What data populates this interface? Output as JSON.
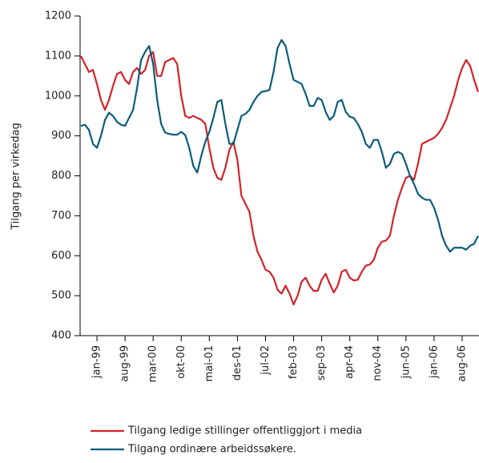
{
  "chart_data": {
    "type": "line",
    "y_label": "Tilgang per virkedag",
    "categories": [
      null,
      null,
      null,
      null,
      "jan-99",
      null,
      null,
      null,
      null,
      null,
      null,
      "aug-99",
      null,
      null,
      null,
      null,
      null,
      null,
      "mar-00",
      null,
      null,
      null,
      null,
      null,
      null,
      "okt-00",
      null,
      null,
      null,
      null,
      null,
      null,
      "mai-01",
      null,
      null,
      null,
      null,
      null,
      null,
      "des-01",
      null,
      null,
      null,
      null,
      null,
      null,
      "jul-02",
      null,
      null,
      null,
      null,
      null,
      null,
      "feb-03",
      null,
      null,
      null,
      null,
      null,
      null,
      "sep-03",
      null,
      null,
      null,
      null,
      null,
      null,
      "apr-04",
      null,
      null,
      null,
      null,
      null,
      null,
      "nov-04",
      null,
      null,
      null,
      null,
      null,
      null,
      "jun-05",
      null,
      null,
      null,
      null,
      null,
      null,
      "jan-06",
      null,
      null,
      null,
      null,
      null,
      null,
      "aug-06",
      null,
      null,
      null,
      null
    ],
    "series": [
      {
        "name": "Tilgang ledige stillinger offentliggjort i media",
        "color": "#d2232a",
        "values": [
          1100,
          1080,
          1060,
          1065,
          1030,
          990,
          965,
          990,
          1025,
          1055,
          1060,
          1040,
          1030,
          1060,
          1070,
          1055,
          1065,
          1100,
          1110,
          1050,
          1050,
          1085,
          1090,
          1095,
          1080,
          1000,
          950,
          945,
          950,
          945,
          940,
          930,
          870,
          820,
          795,
          790,
          820,
          865,
          885,
          840,
          750,
          730,
          710,
          650,
          610,
          590,
          565,
          560,
          545,
          515,
          505,
          525,
          505,
          478,
          500,
          535,
          545,
          525,
          512,
          512,
          540,
          555,
          530,
          508,
          525,
          560,
          565,
          545,
          538,
          540,
          560,
          575,
          578,
          590,
          620,
          635,
          638,
          650,
          700,
          740,
          770,
          795,
          800,
          790,
          830,
          880,
          885,
          890,
          895,
          905,
          920,
          940,
          970,
          1000,
          1040,
          1070,
          1090,
          1075,
          1040,
          1010
        ]
      },
      {
        "name": "Tilgang ordinære arbeidssøkere.",
        "color": "#0b5c7a",
        "values": [
          925,
          928,
          915,
          880,
          870,
          900,
          940,
          958,
          950,
          935,
          928,
          925,
          945,
          965,
          1020,
          1090,
          1110,
          1125,
          1080,
          990,
          930,
          908,
          905,
          903,
          903,
          910,
          902,
          870,
          825,
          808,
          850,
          885,
          910,
          945,
          985,
          990,
          930,
          880,
          880,
          915,
          950,
          955,
          965,
          985,
          1000,
          1010,
          1012,
          1015,
          1060,
          1120,
          1140,
          1125,
          1080,
          1040,
          1035,
          1030,
          1005,
          975,
          975,
          995,
          990,
          960,
          940,
          950,
          985,
          990,
          960,
          948,
          945,
          930,
          910,
          880,
          870,
          890,
          890,
          860,
          820,
          830,
          855,
          860,
          855,
          830,
          800,
          780,
          755,
          745,
          740,
          740,
          720,
          690,
          650,
          625,
          610,
          620,
          620,
          620,
          615,
          625,
          630,
          650
        ]
      }
    ],
    "ylim": [
      400,
      1200
    ],
    "yticks": [
      400,
      500,
      600,
      700,
      800,
      900,
      1000,
      1100,
      1200
    ],
    "grid": false,
    "legend": "bottom"
  }
}
